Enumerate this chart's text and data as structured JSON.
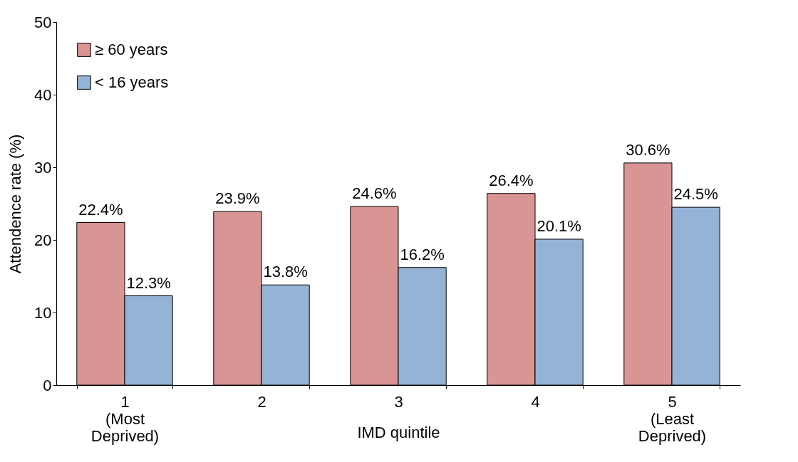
{
  "chart_data": {
    "type": "bar",
    "xlabel": "IMD quintile",
    "ylabel": "Attendence rate (%)",
    "categories": [
      "1\n(Most\nDeprived)",
      "2",
      "3",
      "4",
      "5\n(Least\nDeprived)"
    ],
    "series": [
      {
        "name": "≥ 60 years",
        "color": "#d99594",
        "values": [
          22.4,
          23.9,
          24.6,
          26.4,
          30.6
        ],
        "value_labels": [
          "22.4%",
          "23.9%",
          "24.6%",
          "26.4%",
          "30.6%"
        ]
      },
      {
        "name": "< 16 years",
        "color": "#95b3d7",
        "values": [
          12.3,
          13.8,
          16.2,
          20.1,
          24.5
        ],
        "value_labels": [
          "12.3%",
          "13.8%",
          "16.2%",
          "20.1%",
          "24.5%"
        ]
      }
    ],
    "ylim": [
      0,
      50
    ],
    "yticks": [
      0,
      10,
      20,
      30,
      40,
      50
    ],
    "grid": false,
    "legend": "top left"
  }
}
